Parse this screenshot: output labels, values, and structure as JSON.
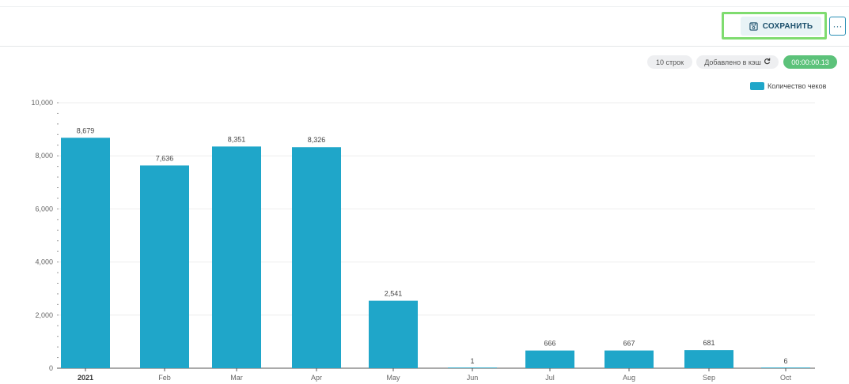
{
  "toolbar": {
    "save_label": "СОХРАНИТЬ",
    "more_label": "···"
  },
  "status": {
    "rows": "10 строк",
    "cache": "Добавлено в кэш",
    "time": "00:00:00.13"
  },
  "colors": {
    "bar": "#1fa6c9",
    "highlight": "#7fdc6f",
    "time_badge": "#5cc27a"
  },
  "chart_data": {
    "type": "bar",
    "categories": [
      "2021",
      "Feb",
      "Mar",
      "Apr",
      "May",
      "Jun",
      "Jul",
      "Aug",
      "Sep",
      "Oct"
    ],
    "series": [
      {
        "name": "Количество чеков",
        "values": [
          8679,
          7636,
          8351,
          8326,
          2541,
          1,
          666,
          667,
          681,
          6
        ]
      }
    ],
    "data_labels": [
      "8,679",
      "7,636",
      "8,351",
      "8,326",
      "2,541",
      "1",
      "666",
      "667",
      "681",
      "6"
    ],
    "yticks": [
      "0",
      "2,000",
      "4,000",
      "6,000",
      "8,000",
      "10,000"
    ],
    "ylim": [
      0,
      10000
    ],
    "grid": true,
    "legend": "top-right"
  }
}
